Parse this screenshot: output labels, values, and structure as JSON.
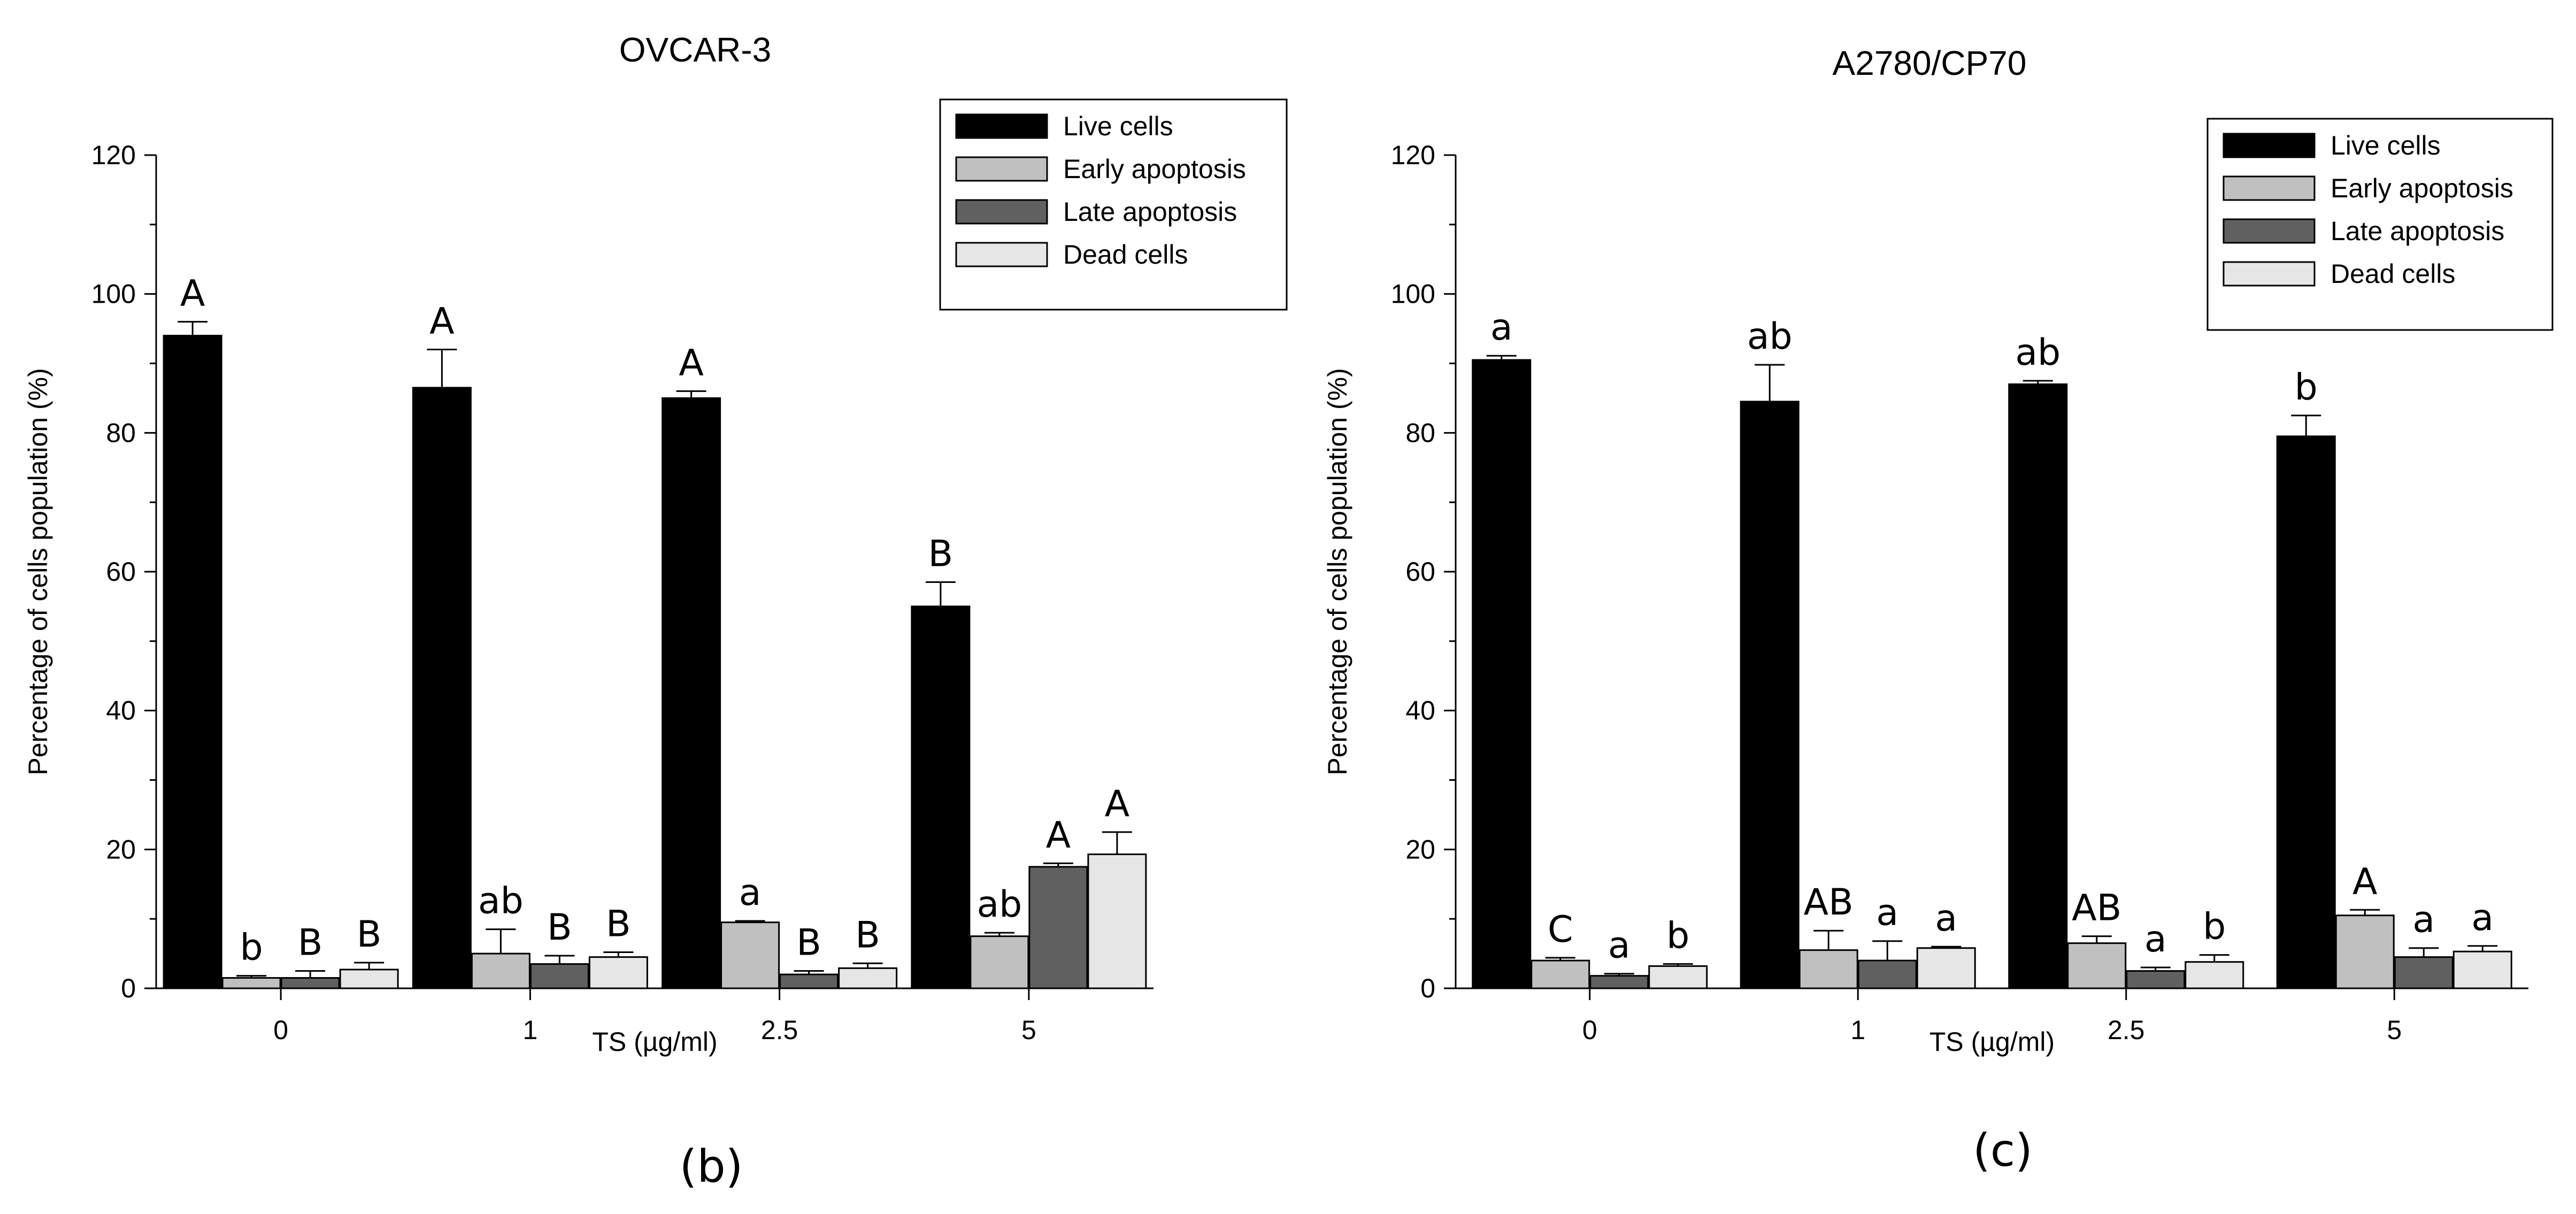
{
  "figure": {
    "panel_labels": [
      "(b)",
      "(c)"
    ]
  },
  "legend_colors": {
    "Live cells": "#000000",
    "Early apoptosis": "#c0c0c0",
    "Late apoptosis": "#606060",
    "Dead cells": "#e6e6e6"
  },
  "chart_data": [
    {
      "type": "bar",
      "title": "OVCAR-3",
      "panel_label": "(b)",
      "xlabel": "TS (µg/ml)",
      "ylabel": "Percentage of cells population (%)",
      "ylim": [
        0,
        120
      ],
      "yticks": [
        "0",
        "20",
        "40",
        "60",
        "80",
        "100",
        "120"
      ],
      "categories": [
        "0",
        "1",
        "2.5",
        "5"
      ],
      "legend_position": "top-right",
      "series": [
        {
          "name": "Live cells",
          "color": "#000000",
          "values": [
            94,
            86.5,
            85,
            55
          ],
          "errors": [
            2,
            5.5,
            1,
            3.5
          ],
          "labels": [
            "A",
            "A",
            "A",
            "B"
          ]
        },
        {
          "name": "Early apoptosis",
          "color": "#c0c0c0",
          "values": [
            1.5,
            5,
            9.5,
            7.5
          ],
          "errors": [
            0.3,
            3.5,
            0.2,
            0.5
          ],
          "labels": [
            "b",
            "ab",
            "a",
            "ab"
          ]
        },
        {
          "name": "Late apoptosis",
          "color": "#606060",
          "values": [
            1.5,
            3.5,
            2,
            17.5
          ],
          "errors": [
            1,
            1.2,
            0.5,
            0.5
          ],
          "labels": [
            "B",
            "B",
            "B",
            "A"
          ]
        },
        {
          "name": "Dead cells",
          "color": "#e6e6e6",
          "values": [
            2.7,
            4.5,
            2.9,
            19.3
          ],
          "errors": [
            1,
            0.7,
            0.7,
            3.2
          ],
          "labels": [
            "B",
            "B",
            "B",
            "A"
          ]
        }
      ]
    },
    {
      "type": "bar",
      "title": "A2780/CP70",
      "panel_label": "(c)",
      "xlabel": "TS (µg/ml)",
      "ylabel": "Percentage of cells population (%)",
      "ylim": [
        0,
        120
      ],
      "yticks": [
        "0",
        "20",
        "40",
        "60",
        "80",
        "100",
        "120"
      ],
      "categories": [
        "0",
        "1",
        "2.5",
        "5"
      ],
      "legend_position": "top-right",
      "series": [
        {
          "name": "Live cells",
          "color": "#000000",
          "values": [
            90.5,
            84.5,
            87,
            79.5
          ],
          "errors": [
            0.6,
            5.3,
            0.5,
            3
          ],
          "labels": [
            "a",
            "ab",
            "ab",
            "b"
          ]
        },
        {
          "name": "Early apoptosis",
          "color": "#c0c0c0",
          "values": [
            4,
            5.5,
            6.5,
            10.5
          ],
          "errors": [
            0.4,
            2.8,
            1,
            0.8
          ],
          "labels": [
            "C",
            "AB",
            "AB",
            "A"
          ]
        },
        {
          "name": "Late apoptosis",
          "color": "#606060",
          "values": [
            1.8,
            4,
            2.5,
            4.5
          ],
          "errors": [
            0.3,
            2.8,
            0.5,
            1.3
          ],
          "labels": [
            "a",
            "a",
            "a",
            "a"
          ]
        },
        {
          "name": "Dead cells",
          "color": "#e6e6e6",
          "values": [
            3.2,
            5.8,
            3.8,
            5.3
          ],
          "errors": [
            0.3,
            0.2,
            1,
            0.8
          ],
          "labels": [
            "b",
            "a",
            "b",
            "a"
          ]
        }
      ]
    }
  ]
}
